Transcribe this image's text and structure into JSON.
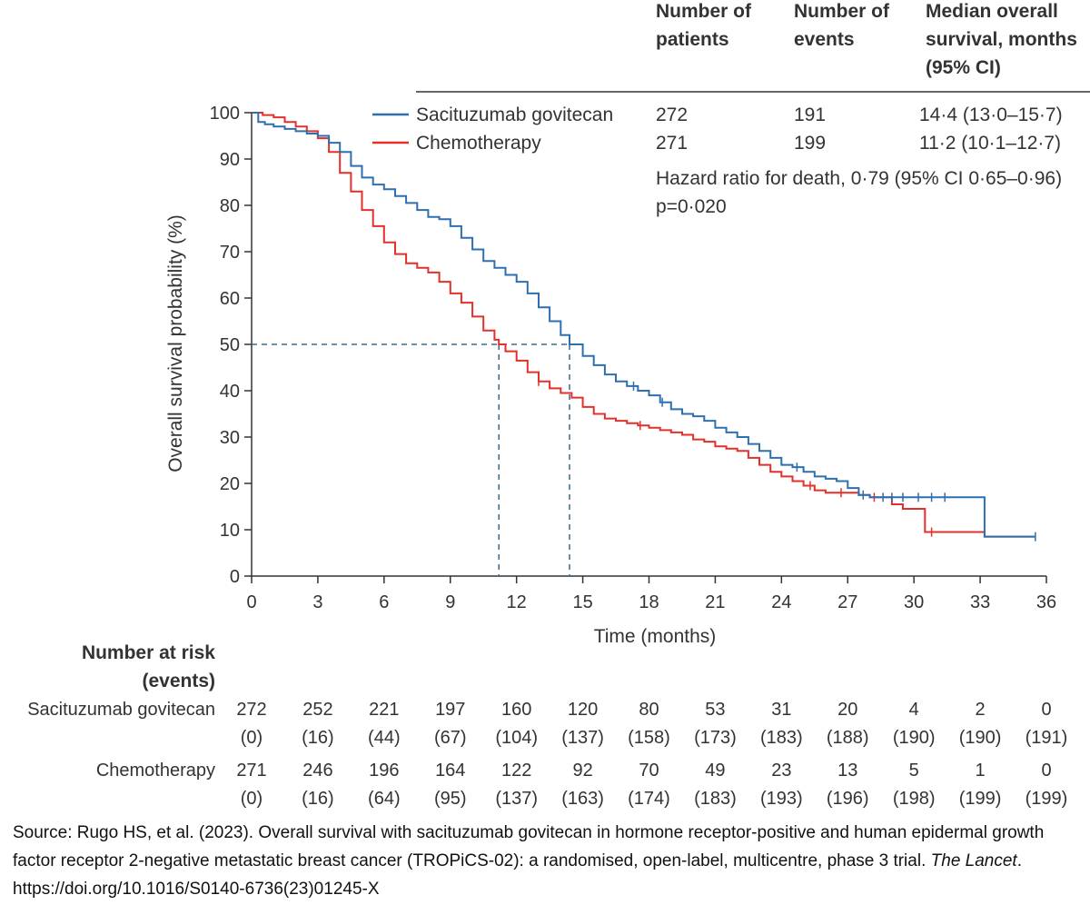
{
  "chart_data": {
    "type": "line",
    "xlabel": "Time (months)",
    "ylabel": "Overall survival probability (%)",
    "xlim": [
      0,
      36
    ],
    "ylim": [
      0,
      100
    ],
    "x_ticks": [
      "0",
      "3",
      "6",
      "9",
      "12",
      "15",
      "18",
      "21",
      "24",
      "27",
      "30",
      "33",
      "36"
    ],
    "y_ticks": [
      "0",
      "10",
      "20",
      "30",
      "40",
      "50",
      "60",
      "70",
      "80",
      "90",
      "100"
    ],
    "median_reference_y": 50,
    "median_reference_x": [
      11.2,
      14.4
    ],
    "table_headers": [
      "Number of patients",
      "Number of events",
      "Median overall survival, months (95% CI)"
    ],
    "series": [
      {
        "name": "Sacituzumab govitecan",
        "color": "#2e6fb0",
        "patients": "272",
        "events": "191",
        "median": "14·4 (13·0–15·7)",
        "x": [
          0,
          0.3,
          0.6,
          1,
          1.5,
          2,
          2.5,
          3,
          3.5,
          4,
          4.5,
          5,
          5.5,
          6,
          6.5,
          7,
          7.5,
          8,
          8.5,
          9,
          9.5,
          10,
          10.5,
          11,
          11.5,
          12,
          12.5,
          13,
          13.5,
          14,
          14.4,
          15,
          15.5,
          16,
          16.5,
          17,
          17.5,
          18,
          18.5,
          19,
          19.5,
          20,
          20.5,
          21,
          21.5,
          22,
          22.5,
          23,
          23.5,
          24,
          24.5,
          25,
          25.5,
          26,
          26.5,
          27,
          27.5,
          28,
          29,
          30,
          31,
          32,
          33.2,
          33.2,
          35.5
        ],
        "y": [
          100,
          98,
          97.5,
          97,
          96.5,
          96,
          95.5,
          95,
          93.5,
          91.5,
          88.5,
          86,
          84.5,
          83.5,
          82,
          80.5,
          79,
          77.5,
          77,
          75.5,
          73,
          70.5,
          68,
          66.5,
          65,
          63.5,
          61,
          58,
          55,
          52,
          50,
          47.5,
          45.5,
          43.5,
          42,
          41,
          40,
          39,
          37.5,
          36,
          35,
          34.5,
          33.5,
          32,
          31,
          30,
          28.5,
          27,
          25.5,
          24,
          23.5,
          22.5,
          21.5,
          21,
          20.5,
          19,
          17.5,
          17,
          17,
          17,
          17,
          17,
          17,
          8.5,
          8.5
        ],
        "censor_x": [
          17.3,
          18.6,
          24.7,
          27.7,
          28.6,
          29.0,
          29.5,
          30.2,
          30.8,
          31.4,
          35.5
        ]
      },
      {
        "name": "Chemotherapy",
        "color": "#e3302a",
        "patients": "271",
        "events": "199",
        "median": "11·2 (10·1–12·7)",
        "x": [
          0,
          0.5,
          1,
          1.5,
          2,
          2.5,
          3,
          3.5,
          4,
          4.5,
          5,
          5.5,
          6,
          6.5,
          7,
          7.5,
          8,
          8.5,
          9,
          9.5,
          10,
          10.5,
          11,
          11.2,
          11.5,
          12,
          12.5,
          13,
          13.5,
          14,
          14.5,
          15,
          15.5,
          16,
          16.5,
          17,
          17.5,
          18,
          18.5,
          19,
          19.5,
          20,
          20.5,
          21,
          21.5,
          22,
          22.5,
          23,
          23.5,
          24,
          24.5,
          25,
          25.5,
          26,
          26.5,
          27,
          27.5,
          28,
          28.5,
          29,
          29.5,
          30,
          30.5,
          30.5,
          33.2,
          33.2,
          35.5
        ],
        "y": [
          100,
          99.5,
          99,
          98,
          97,
          96,
          94.5,
          91.5,
          87,
          83,
          79,
          75.5,
          72,
          69.5,
          67.5,
          66.5,
          65.5,
          63.5,
          61,
          59,
          56,
          53,
          51,
          50,
          48.5,
          46.5,
          44,
          42,
          40.5,
          39.5,
          38.5,
          36.5,
          35,
          34,
          33.5,
          33,
          32.5,
          32,
          31.5,
          31,
          30.5,
          29.5,
          29,
          28,
          27.5,
          27,
          25.5,
          24,
          22.5,
          21.5,
          20.5,
          19.5,
          18.5,
          18,
          18,
          18,
          17.5,
          17,
          17,
          15.5,
          14.5,
          14.5,
          14.5,
          9.5,
          9.5,
          8.5,
          8.5
        ],
        "censor_x": [
          13.0,
          17.6,
          25.3,
          26.7,
          28.2,
          30.8
        ]
      }
    ],
    "legend_position": "top",
    "grid": false
  },
  "stats": {
    "hazard_ratio": "Hazard ratio for death, 0·79 (95% CI 0·65–0·96)",
    "p_value": "p=0·020"
  },
  "risk_table": {
    "title_line1": "Number at risk",
    "title_line2": "(events)",
    "rows": [
      {
        "label": "Sacituzumab govitecan",
        "at_risk": [
          "272",
          "252",
          "221",
          "197",
          "160",
          "120",
          "80",
          "53",
          "31",
          "20",
          "4",
          "2",
          "0"
        ],
        "events": [
          "(0)",
          "(16)",
          "(44)",
          "(67)",
          "(104)",
          "(137)",
          "(158)",
          "(173)",
          "(183)",
          "(188)",
          "(190)",
          "(190)",
          "(191)"
        ]
      },
      {
        "label": "Chemotherapy",
        "at_risk": [
          "271",
          "246",
          "196",
          "164",
          "122",
          "92",
          "70",
          "49",
          "23",
          "13",
          "5",
          "1",
          "0"
        ],
        "events": [
          "(0)",
          "(16)",
          "(64)",
          "(95)",
          "(137)",
          "(163)",
          "(174)",
          "(183)",
          "(193)",
          "(196)",
          "(198)",
          "(199)",
          "(199)"
        ]
      }
    ]
  },
  "source": {
    "prefix": "Source: Rugo HS, et al. (2023). Overall survival with sacituzumab govitecan in hormone receptor-positive and human epidermal growth factor receptor 2-negative metastatic breast cancer (TROPiCS-02): a randomised, open-label, multicentre, phase 3 trial.",
    "journal": "The Lancet",
    "doi": ". https://doi.org/10.1016/S0140-6736(23)01245-X"
  }
}
